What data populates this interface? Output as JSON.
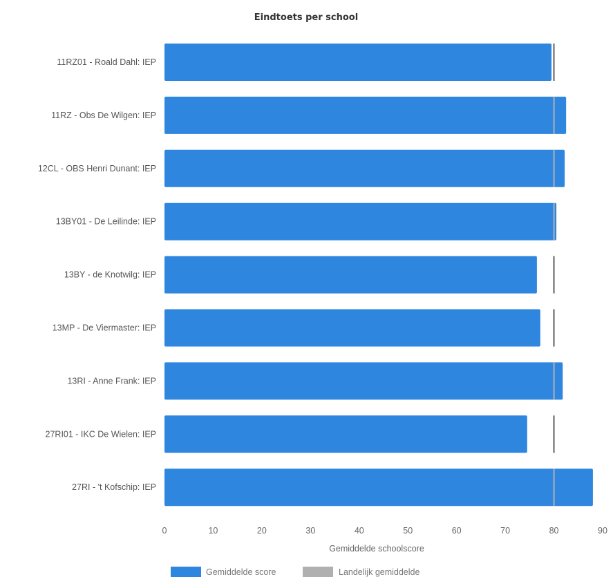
{
  "chart_data": {
    "type": "bar",
    "orientation": "horizontal",
    "title": "Eindtoets per school",
    "xlabel": "Gemiddelde schoolscore",
    "ylabel": "",
    "xlim": [
      0,
      90
    ],
    "xticks": [
      0,
      10,
      20,
      30,
      40,
      50,
      60,
      70,
      80,
      90
    ],
    "categories": [
      "11RZ01 - Roald Dahl: IEP",
      "11RZ - Obs De Wilgen: IEP",
      "12CL - OBS Henri Dunant: IEP",
      "13BY01 - De Leilinde: IEP",
      "13BY - de Knotwilg: IEP",
      "13MP - De Viermaster: IEP",
      "13RI - Anne Frank: IEP",
      "27RI01 - IKC De Wielen: IEP",
      "27RI - 't Kofschip: IEP"
    ],
    "series": [
      {
        "name": "Gemiddelde score",
        "color": "#2e86de",
        "values": [
          79.5,
          82.5,
          82.2,
          80.5,
          76.5,
          77.2,
          81.8,
          74.5,
          88.0
        ]
      },
      {
        "name": "Landelijk gemiddelde",
        "color": "#b0b0b0",
        "values": [
          80,
          80,
          80,
          80,
          80,
          80,
          80,
          80,
          80
        ]
      }
    ],
    "grid": false,
    "legend_position": "bottom"
  }
}
